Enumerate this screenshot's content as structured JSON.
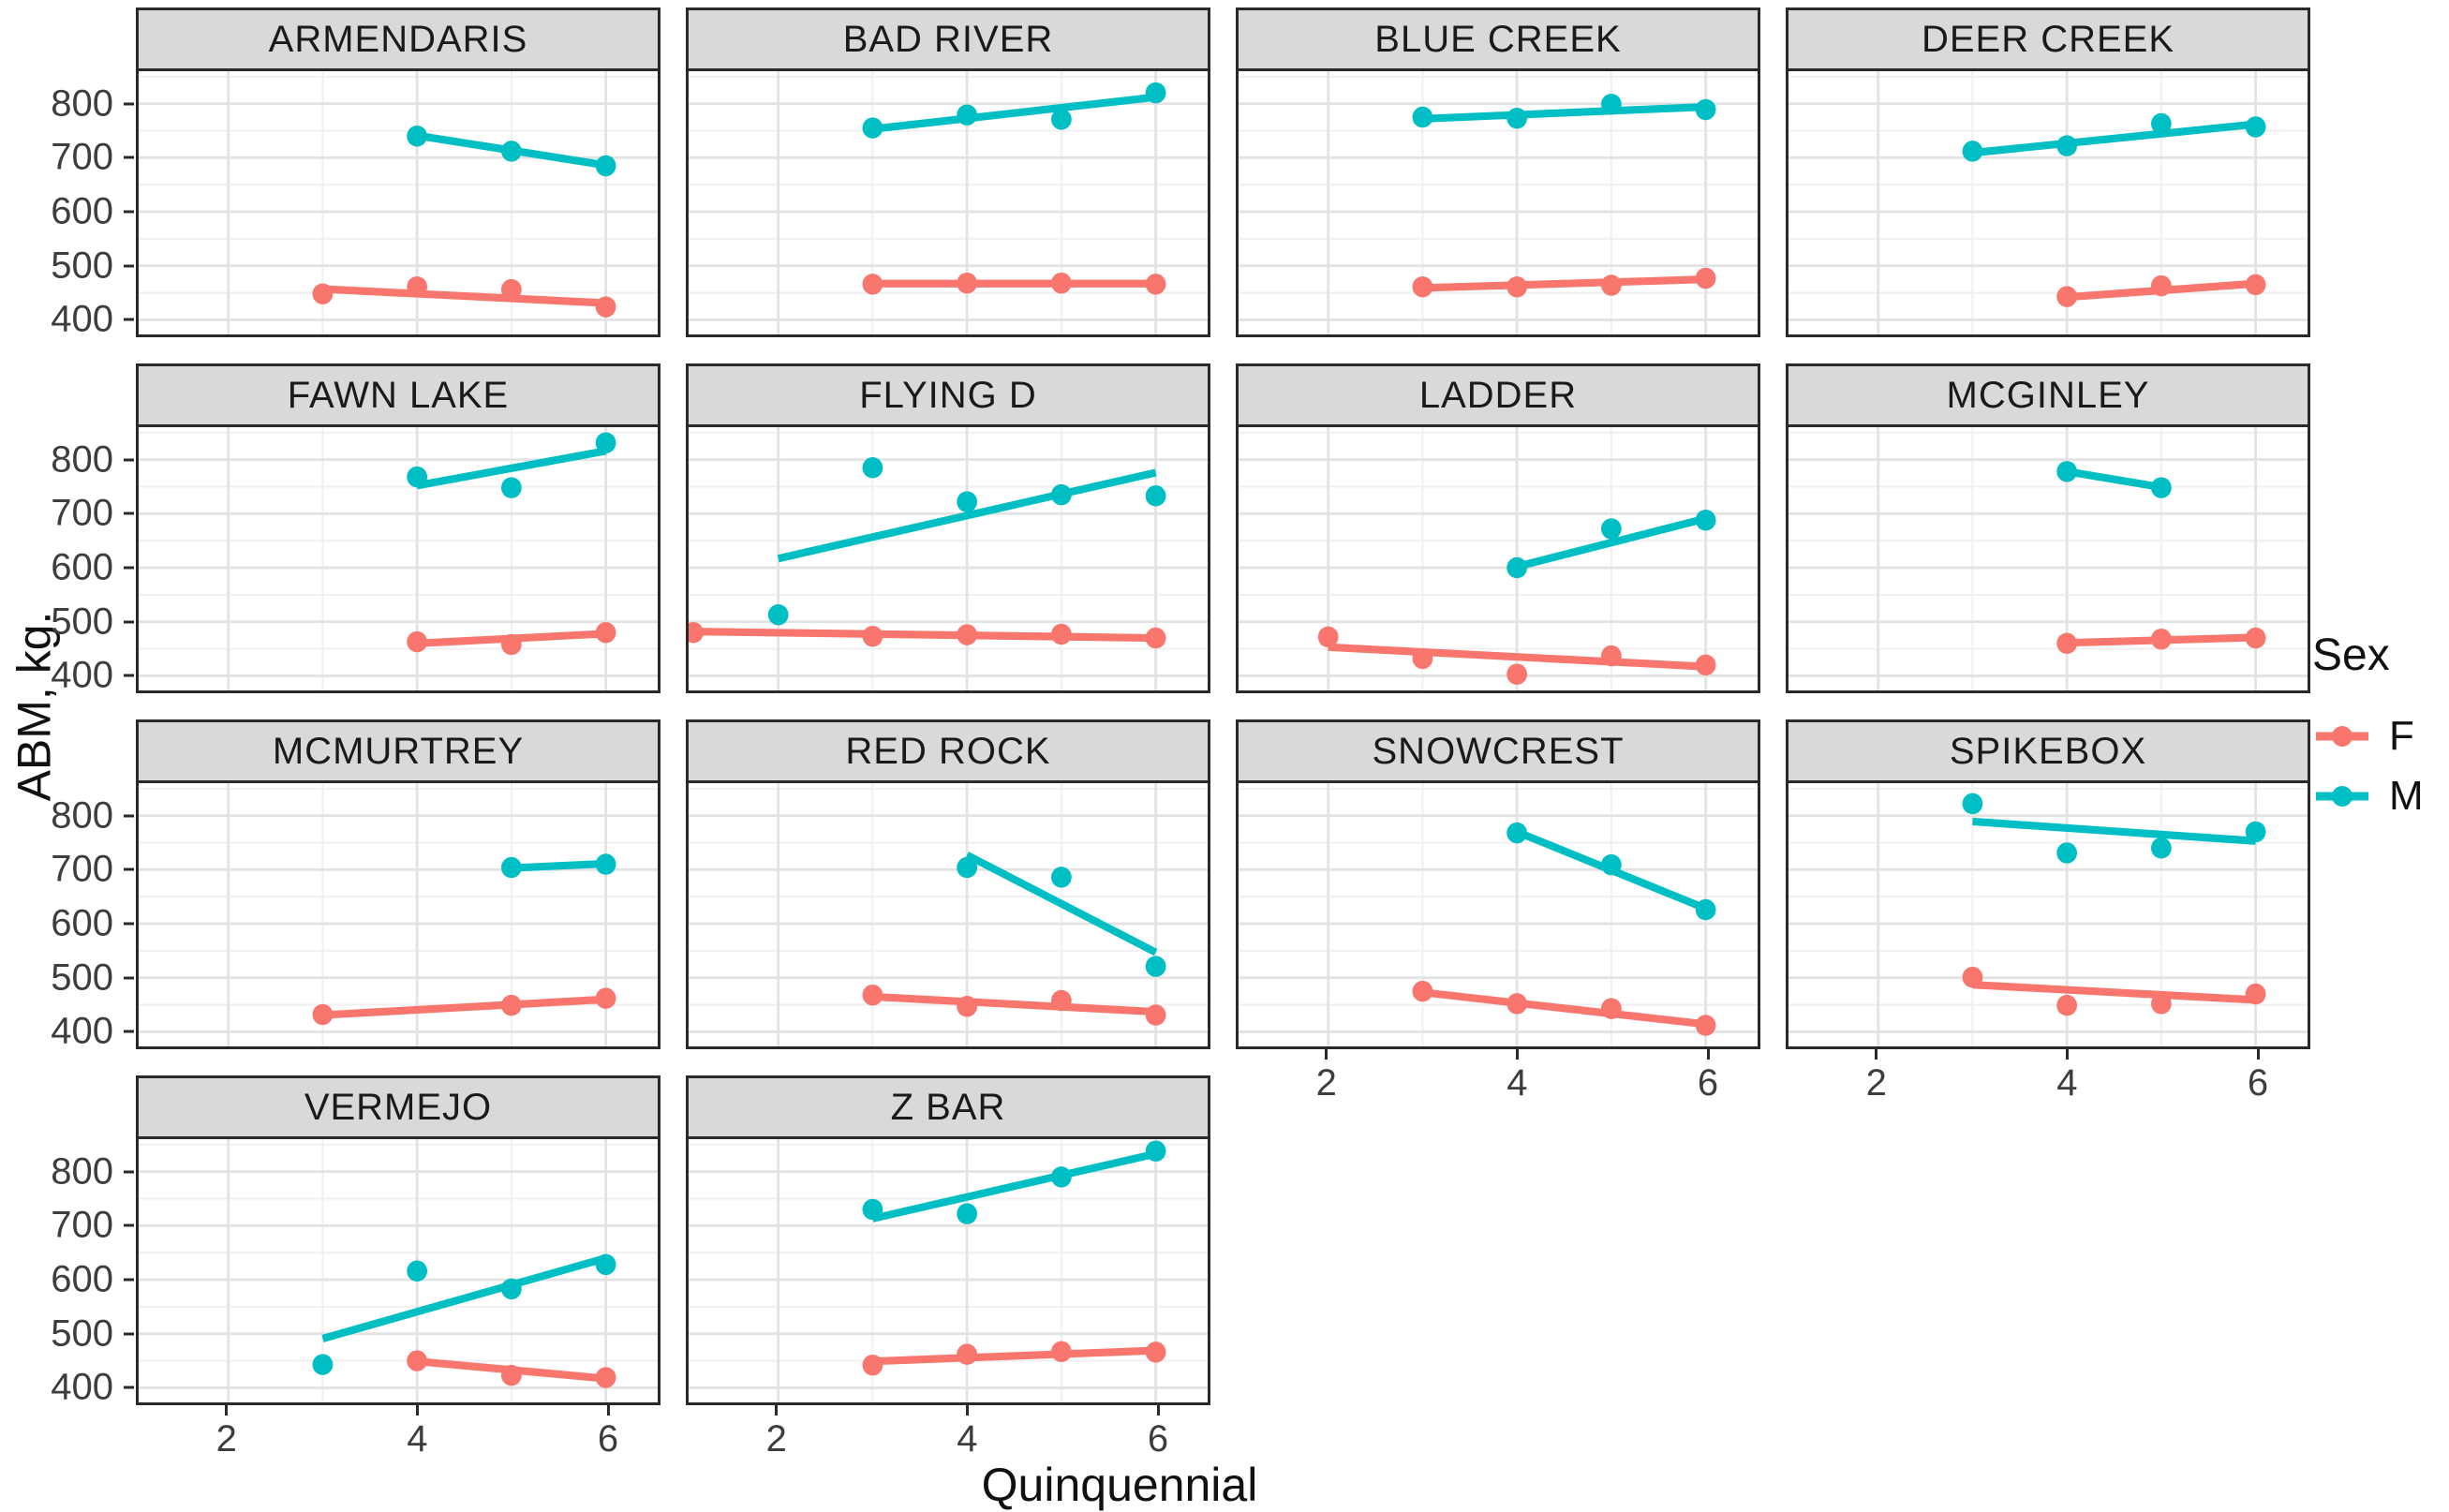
{
  "figure": {
    "y_axis_title": "ABM, kg.",
    "x_axis_title": "Quinquennial",
    "y_ticks": [
      800,
      700,
      600,
      500,
      400
    ],
    "x_ticks": [
      2,
      4,
      6
    ]
  },
  "legend": {
    "title": "Sex",
    "items": [
      {
        "label": "F",
        "color": "#F8766D"
      },
      {
        "label": "M",
        "color": "#00BFC4"
      }
    ]
  },
  "chart_data": {
    "type": "scatter",
    "title": "",
    "xlabel": "Quinquennial",
    "ylabel": "ABM, kg.",
    "facet_variable": "ranch",
    "x_range": [
      1.05,
      6.55
    ],
    "y_range": [
      373,
      860
    ],
    "x_major_gridlines": [
      2,
      4,
      6
    ],
    "x_minor_gridlines": [
      1,
      3,
      5
    ],
    "y_major_gridlines": [
      400,
      500,
      600,
      700,
      800
    ],
    "y_minor_gridlines": [
      450,
      550,
      650,
      750,
      850
    ],
    "grid_major_color": "#e3e3e3",
    "grid_minor_color": "#f0f0f0",
    "strip_fill": "#d9d9d9",
    "panel_border": "#2a2a2a",
    "series_colors": {
      "F": "#F8766D",
      "M": "#00BFC4"
    },
    "facets": [
      {
        "title": "ARMENDARIS",
        "row": 0,
        "col": 0,
        "x_axis": false,
        "series": {
          "F": {
            "points": [
              [
                3,
                448
              ],
              [
                4,
                461
              ],
              [
                5,
                456
              ],
              [
                6,
                424
              ]
            ],
            "trend": [
              [
                3,
                457
              ],
              [
                6,
                431
              ]
            ]
          },
          "M": {
            "points": [
              [
                4,
                740
              ],
              [
                5,
                712
              ],
              [
                6,
                685
              ]
            ],
            "trend": [
              [
                4,
                741
              ],
              [
                6,
                686
              ]
            ]
          }
        }
      },
      {
        "title": "BAD RIVER",
        "row": 0,
        "col": 1,
        "x_axis": false,
        "series": {
          "F": {
            "points": [
              [
                3,
                466
              ],
              [
                4,
                468
              ],
              [
                5,
                468
              ],
              [
                6,
                466
              ]
            ],
            "trend": [
              [
                3,
                467
              ],
              [
                6,
                467
              ]
            ]
          },
          "M": {
            "points": [
              [
                3,
                755
              ],
              [
                4,
                779
              ],
              [
                5,
                771
              ],
              [
                6,
                820
              ]
            ],
            "trend": [
              [
                3,
                753
              ],
              [
                6,
                812
              ]
            ]
          }
        }
      },
      {
        "title": "BLUE CREEK",
        "row": 0,
        "col": 2,
        "x_axis": false,
        "series": {
          "F": {
            "points": [
              [
                3,
                461
              ],
              [
                4,
                461
              ],
              [
                5,
                464
              ],
              [
                6,
                477
              ]
            ],
            "trend": [
              [
                3,
                459
              ],
              [
                6,
                475
              ]
            ]
          },
          "M": {
            "points": [
              [
                3,
                775
              ],
              [
                4,
                773
              ],
              [
                5,
                799
              ],
              [
                6,
                789
              ]
            ],
            "trend": [
              [
                3,
                772
              ],
              [
                6,
                794
              ]
            ]
          }
        }
      },
      {
        "title": "DEER CREEK",
        "row": 0,
        "col": 3,
        "x_axis": false,
        "series": {
          "F": {
            "points": [
              [
                4,
                443
              ],
              [
                5,
                463
              ],
              [
                6,
                465
              ]
            ],
            "trend": [
              [
                4,
                442
              ],
              [
                6,
                467
              ]
            ]
          },
          "M": {
            "points": [
              [
                3,
                712
              ],
              [
                4,
                722
              ],
              [
                5,
                763
              ],
              [
                6,
                757
              ]
            ],
            "trend": [
              [
                3,
                709
              ],
              [
                6,
                762
              ]
            ]
          }
        }
      },
      {
        "title": "FAWN LAKE",
        "row": 1,
        "col": 0,
        "x_axis": false,
        "series": {
          "F": {
            "points": [
              [
                4,
                463
              ],
              [
                5,
                458
              ],
              [
                6,
                480
              ]
            ],
            "trend": [
              [
                4,
                460
              ],
              [
                6,
                478
              ]
            ]
          },
          "M": {
            "points": [
              [
                4,
                768
              ],
              [
                5,
                748
              ],
              [
                6,
                831
              ]
            ],
            "trend": [
              [
                4,
                752
              ],
              [
                6,
                816
              ]
            ]
          }
        }
      },
      {
        "title": "FLYING D",
        "row": 1,
        "col": 1,
        "x_axis": false,
        "series": {
          "F": {
            "points": [
              [
                1.1,
                480
              ],
              [
                3,
                473
              ],
              [
                4,
                476
              ],
              [
                5,
                477
              ],
              [
                6,
                470
              ]
            ],
            "trend": [
              [
                1.1,
                482
              ],
              [
                6,
                470
              ]
            ]
          },
          "M": {
            "points": [
              [
                2,
                513
              ],
              [
                3,
                785
              ],
              [
                4,
                722
              ],
              [
                5,
                735
              ],
              [
                6,
                733
              ]
            ],
            "trend": [
              [
                2,
                617
              ],
              [
                6,
                776
              ]
            ]
          }
        }
      },
      {
        "title": "LADDER",
        "row": 1,
        "col": 2,
        "x_axis": false,
        "series": {
          "F": {
            "points": [
              [
                2,
                472
              ],
              [
                3,
                432
              ],
              [
                4,
                403
              ],
              [
                5,
                437
              ],
              [
                6,
                420
              ]
            ],
            "trend": [
              [
                2,
                453
              ],
              [
                6,
                417
              ]
            ]
          },
          "M": {
            "points": [
              [
                4,
                600
              ],
              [
                5,
                672
              ],
              [
                6,
                688
              ]
            ],
            "trend": [
              [
                4,
                602
              ],
              [
                6,
                691
              ]
            ]
          }
        }
      },
      {
        "title": "MCGINLEY",
        "row": 1,
        "col": 3,
        "x_axis": false,
        "series": {
          "F": {
            "points": [
              [
                4,
                460
              ],
              [
                5,
                468
              ],
              [
                6,
                470
              ]
            ],
            "trend": [
              [
                4,
                461
              ],
              [
                6,
                471
              ]
            ]
          },
          "M": {
            "points": [
              [
                4,
                778
              ],
              [
                5,
                748
              ]
            ],
            "trend": [
              [
                4,
                778
              ],
              [
                5,
                749
              ]
            ]
          }
        }
      },
      {
        "title": "MCMURTREY",
        "row": 2,
        "col": 0,
        "x_axis": false,
        "series": {
          "F": {
            "points": [
              [
                3,
                432
              ],
              [
                5,
                449
              ],
              [
                6,
                462
              ]
            ],
            "trend": [
              [
                3,
                431
              ],
              [
                6,
                460
              ]
            ]
          },
          "M": {
            "points": [
              [
                5,
                704
              ],
              [
                6,
                710
              ]
            ],
            "trend": [
              [
                5,
                703
              ],
              [
                6,
                711
              ]
            ]
          }
        }
      },
      {
        "title": "RED ROCK",
        "row": 2,
        "col": 1,
        "x_axis": false,
        "series": {
          "F": {
            "points": [
              [
                3,
                468
              ],
              [
                4,
                447
              ],
              [
                5,
                458
              ],
              [
                6,
                431
              ]
            ],
            "trend": [
              [
                3,
                465
              ],
              [
                6,
                437
              ]
            ]
          },
          "M": {
            "points": [
              [
                4,
                704
              ],
              [
                5,
                686
              ],
              [
                6,
                521
              ]
            ],
            "trend": [
              [
                4,
                727
              ],
              [
                6,
                547
              ]
            ]
          }
        }
      },
      {
        "title": "SNOWCREST",
        "row": 2,
        "col": 2,
        "x_axis": true,
        "series": {
          "F": {
            "points": [
              [
                3,
                475
              ],
              [
                4,
                452
              ],
              [
                5,
                443
              ],
              [
                6,
                412
              ]
            ],
            "trend": [
              [
                3,
                473
              ],
              [
                6,
                414
              ]
            ]
          },
          "M": {
            "points": [
              [
                4,
                768
              ],
              [
                5,
                709
              ],
              [
                6,
                626
              ]
            ],
            "trend": [
              [
                4,
                770
              ],
              [
                6,
                628
              ]
            ]
          }
        }
      },
      {
        "title": "SPIKEBOX",
        "row": 2,
        "col": 3,
        "x_axis": true,
        "series": {
          "F": {
            "points": [
              [
                3,
                501
              ],
              [
                4,
                449
              ],
              [
                5,
                452
              ],
              [
                6,
                470
              ]
            ],
            "trend": [
              [
                3,
                487
              ],
              [
                6,
                459
              ]
            ]
          },
          "M": {
            "points": [
              [
                3,
                822
              ],
              [
                4,
                731
              ],
              [
                5,
                740
              ],
              [
                6,
                770
              ]
            ],
            "trend": [
              [
                3,
                789
              ],
              [
                6,
                753
              ]
            ]
          }
        }
      },
      {
        "title": "VERMEJO",
        "row": 3,
        "col": 0,
        "x_axis": true,
        "series": {
          "F": {
            "points": [
              [
                4,
                450
              ],
              [
                5,
                423
              ],
              [
                6,
                419
              ]
            ],
            "trend": [
              [
                4,
                449
              ],
              [
                6,
                417
              ]
            ]
          },
          "M": {
            "points": [
              [
                3,
                443
              ],
              [
                4,
                616
              ],
              [
                5,
                583
              ],
              [
                6,
                628
              ]
            ],
            "trend": [
              [
                3,
                491
              ],
              [
                6,
                640
              ]
            ]
          }
        }
      },
      {
        "title": "Z BAR",
        "row": 3,
        "col": 1,
        "x_axis": true,
        "series": {
          "F": {
            "points": [
              [
                3,
                442
              ],
              [
                4,
                462
              ],
              [
                5,
                467
              ],
              [
                6,
                466
              ]
            ],
            "trend": [
              [
                3,
                449
              ],
              [
                6,
                469
              ]
            ]
          },
          "M": {
            "points": [
              [
                3,
                730
              ],
              [
                4,
                722
              ],
              [
                5,
                790
              ],
              [
                6,
                838
              ]
            ],
            "trend": [
              [
                3,
                713
              ],
              [
                6,
                833
              ]
            ]
          }
        }
      }
    ]
  }
}
